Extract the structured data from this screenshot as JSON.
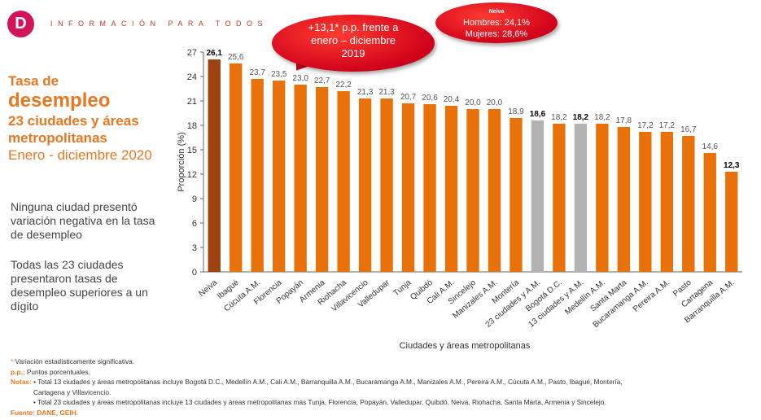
{
  "header": {
    "logo_letter": "D",
    "text": "INFORMACIÓN PARA TODOS"
  },
  "title": {
    "line1": "Tasa de",
    "line2": "desempleo",
    "line3": "23 ciudades y áreas",
    "line4": "metropolitanas",
    "line5": "Enero - diciembre 2020"
  },
  "side_notes": {
    "note1": "Ninguna ciudad presentó variación negativa en la tasa de desempleo",
    "note2": "Todas las 23 ciudades presentaron tasas de desempleo superiores a un dígito"
  },
  "callouts": {
    "main": {
      "line1": "+13,1* p.p. frente a",
      "line2": "enero – diciembre",
      "line3": "2019"
    },
    "neiva": {
      "title": "Neiva",
      "line1": "Hombres: 24,1%",
      "line2": "Mujeres: 28,6%"
    }
  },
  "footnotes": {
    "star": "*",
    "star_text": " Variación estadísticamente significativa.",
    "pp_label": "p.p.:",
    "pp_text": " Puntos porcentuales.",
    "notas_label": "Notas:",
    "nota1": " • Total 13 ciudades y áreas metropolitanas incluye Bogotá D.C., Medellín A.M., Cali A.M., Barranquilla A.M., Bucaramanga A.M., Manizales A.M., Pereira A.M., Cúcuta A.M., Pasto, Ibagué, Montería,",
    "nota1_cont": "Cartagena y Villavicencio.",
    "nota2": "• Total 23 ciudades y áreas metropolitanas incluye 13 ciudades y áreas metropolitanas más Tunja, Florencia, Popayán, Valledupar, Quibdó, Neiva, Riohacha, Santa Marta, Armenia y Sincelejo.",
    "fuente": "Fuente: DANE, GEIH."
  },
  "colors": {
    "bar_default": "#e8710a",
    "bar_highlight": "#a0420f",
    "bar_total": "#b3b3b3",
    "accent": "#e87722",
    "callout": "#d0021b"
  },
  "chart_data": {
    "type": "bar",
    "ylabel": "Proporción (%)",
    "xlabel": "Ciudades y áreas metropolitanas",
    "ylim": [
      0,
      27
    ],
    "yticks": [
      0,
      3,
      6,
      9,
      12,
      15,
      18,
      21,
      24,
      27
    ],
    "grid": false,
    "categories": [
      "Neiva",
      "Ibagué",
      "Cúcuta A.M.",
      "Florencia",
      "Popayán",
      "Armenia",
      "Riohacha",
      "Villavicencio",
      "Valledupar",
      "Tunja",
      "Quibdó",
      "Cali A.M.",
      "Sincelejo",
      "Manizales A.M.",
      "Montería",
      "23 ciudades y A.M.",
      "Bogotá D.C.",
      "13 ciudades y A.M.",
      "Medellín A.M.",
      "Santa Marta",
      "Bucaramanga A.M.",
      "Pereira A.M.",
      "Pasto",
      "Cartagena",
      "Barranquilla A.M."
    ],
    "values": [
      26.1,
      25.6,
      23.7,
      23.5,
      23.0,
      22.7,
      22.2,
      21.3,
      21.3,
      20.7,
      20.6,
      20.4,
      20.0,
      20.0,
      18.9,
      18.6,
      18.2,
      18.2,
      18.2,
      17.8,
      17.2,
      17.2,
      16.7,
      14.6,
      12.3
    ],
    "labels": [
      "26,1",
      "25,6",
      "23,7",
      "23,5",
      "23,0",
      "22,7",
      "22,2",
      "21,3",
      "21,3",
      "20,7",
      "20,6",
      "20,4",
      "20,0",
      "20,0",
      "18,9",
      "18,6",
      "18,2",
      "18,2",
      "18,2",
      "17,8",
      "17,2",
      "17,2",
      "16,7",
      "14,6",
      "12,3"
    ],
    "highlight": [
      "Neiva"
    ],
    "totals": [
      "23 ciudades y A.M.",
      "13 ciudades y A.M."
    ],
    "bold_labels": [
      "Neiva",
      "23 ciudades y A.M.",
      "13 ciudades y A.M.",
      "Barranquilla A.M."
    ]
  }
}
